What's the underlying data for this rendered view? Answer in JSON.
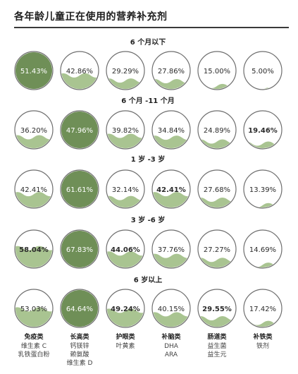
{
  "chart_data": {
    "type": "bubble-fill",
    "title": "各年龄儿童正在使用的营养补充剂",
    "colors": {
      "fill": "#a9c491",
      "fill_dark": "#6f8f57",
      "outline": "#6e6e6e",
      "rule": "#3a3a3a"
    },
    "categories": [
      {
        "name": "免疫类",
        "items": [
          "维生素 C",
          "乳铁蛋白粉"
        ]
      },
      {
        "name": "长高类",
        "items": [
          "钙镁锌",
          "赖氨酸",
          "维生素 D"
        ]
      },
      {
        "name": "护眼类",
        "items": [
          "叶黄素"
        ]
      },
      {
        "name": "补脑类",
        "items": [
          "DHA",
          "ARA"
        ]
      },
      {
        "name": "肠道类",
        "items": [
          "益生菌",
          "益生元"
        ]
      },
      {
        "name": "补铁类",
        "items": [
          "铁剂"
        ]
      }
    ],
    "groups": [
      {
        "title": "6 个月以下",
        "values": [
          51.43,
          42.86,
          29.29,
          27.86,
          15.0,
          5.0
        ],
        "labels": [
          "51.43%",
          "42.86%",
          "29.29%",
          "27.86%",
          "15.00%",
          "5.00%"
        ],
        "highlight": [
          0
        ],
        "bold": []
      },
      {
        "title": "6 个月 -11 个月",
        "values": [
          36.2,
          47.96,
          39.82,
          34.84,
          24.89,
          19.46
        ],
        "labels": [
          "36.20%",
          "47.96%",
          "39.82%",
          "34.84%",
          "24.89%",
          "19.46%"
        ],
        "highlight": [
          1
        ],
        "bold": [
          5
        ]
      },
      {
        "title": "1 岁 -3 岁",
        "values": [
          42.41,
          61.61,
          32.14,
          42.41,
          27.68,
          13.39
        ],
        "labels": [
          "42.41%",
          "61.61%",
          "32.14%",
          "42.41%",
          "27.68%",
          "13.39%"
        ],
        "highlight": [
          1
        ],
        "bold": [
          3
        ]
      },
      {
        "title": "3 岁 -6 岁",
        "values": [
          58.04,
          67.83,
          44.06,
          37.76,
          27.27,
          14.69
        ],
        "labels": [
          "58.04%",
          "67.83%",
          "44.06%",
          "37.76%",
          "27.27%",
          "14.69%"
        ],
        "highlight": [
          1
        ],
        "bold": [
          0,
          2
        ]
      },
      {
        "title": "6 岁以上",
        "values": [
          53.03,
          64.64,
          49.24,
          40.15,
          29.55,
          17.42
        ],
        "labels": [
          "53.03%",
          "64.64%",
          "49.24%",
          "40.15%",
          "29.55%",
          "17.42%"
        ],
        "highlight": [
          1
        ],
        "bold": [
          2,
          4
        ]
      }
    ]
  }
}
